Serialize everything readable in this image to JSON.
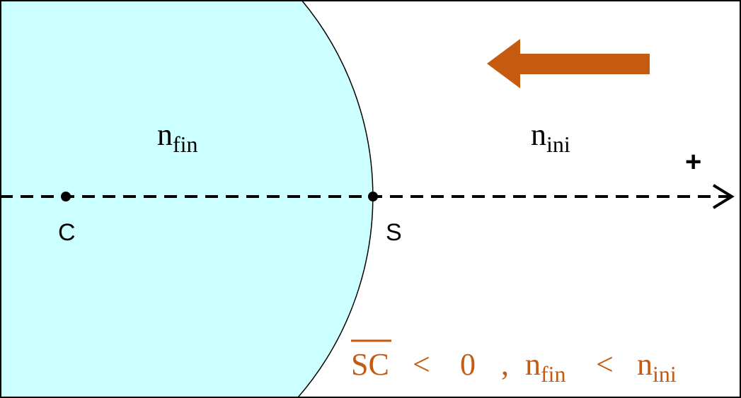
{
  "colors": {
    "medium_fill": "#CCFFFF",
    "accent": "#C55A11",
    "line": "#000000"
  },
  "labels": {
    "n_final": {
      "base": "n",
      "sub": "fin"
    },
    "n_initial": {
      "base": "n",
      "sub": "ini"
    },
    "positive_direction": "+",
    "center_point": "C",
    "vertex_point": "S"
  },
  "condition": {
    "segment": "SC",
    "less_than": "<",
    "zero": "0",
    "comma": ",",
    "n1": {
      "base": "n",
      "sub": "fin"
    },
    "less_than_2": "<",
    "n2": {
      "base": "n",
      "sub": "ini"
    }
  },
  "icons": {
    "light_direction": "arrow-left-icon",
    "axis_arrow": "arrow-right-icon"
  }
}
